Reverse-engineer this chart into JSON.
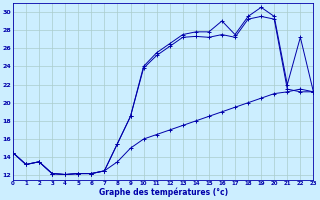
{
  "xlabel": "Graphe des températures (°c)",
  "background_color": "#cceeff",
  "grid_color": "#aacccc",
  "line_color": "#0000aa",
  "hours": [
    0,
    1,
    2,
    3,
    4,
    5,
    6,
    7,
    8,
    9,
    10,
    11,
    12,
    13,
    14,
    15,
    16,
    17,
    18,
    19,
    20,
    21,
    22,
    23
  ],
  "series1": [
    14.5,
    13.2,
    13.5,
    12.2,
    12.1,
    12.2,
    12.2,
    12.5,
    13.5,
    15.0,
    16.0,
    16.5,
    17.0,
    17.5,
    18.0,
    18.5,
    19.0,
    19.5,
    20.0,
    20.5,
    21.0,
    21.2,
    21.5,
    21.2
  ],
  "series2": [
    14.5,
    13.2,
    13.5,
    12.2,
    12.1,
    12.2,
    12.2,
    12.5,
    15.5,
    18.5,
    23.8,
    25.2,
    26.2,
    27.2,
    27.3,
    27.2,
    27.5,
    27.2,
    29.2,
    29.5,
    29.2,
    21.5,
    21.2,
    21.2
  ],
  "series3": [
    14.5,
    13.2,
    13.5,
    12.2,
    12.1,
    12.2,
    12.2,
    12.5,
    15.5,
    18.5,
    24.0,
    25.5,
    26.5,
    27.5,
    27.8,
    27.8,
    29.0,
    27.5,
    29.5,
    30.5,
    29.5,
    22.0,
    27.2,
    21.2
  ],
  "ylim": [
    11.5,
    31
  ],
  "xlim": [
    0,
    23
  ],
  "yticks": [
    12,
    14,
    16,
    18,
    20,
    22,
    24,
    26,
    28,
    30
  ],
  "xtick_labels": [
    "0",
    "1",
    "2",
    "3",
    "4",
    "5",
    "6",
    "7",
    "8",
    "9",
    "10",
    "11",
    "12",
    "13",
    "14",
    "15",
    "16",
    "17",
    "18",
    "19",
    "20",
    "21",
    "22",
    "23"
  ]
}
